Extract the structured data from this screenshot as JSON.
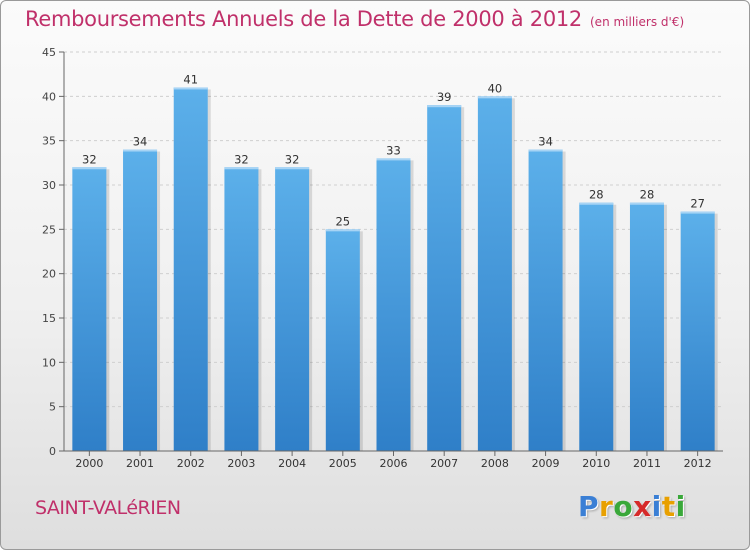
{
  "title": "Remboursements Annuels de la Dette de 2000 à 2012",
  "unit": "(en milliers d'€)",
  "city": "SAINT-VALéRIEN",
  "logo": {
    "letters": [
      "P",
      "r",
      "o",
      "x",
      "i",
      "t",
      "i"
    ],
    "colors": [
      "#3a7fd5",
      "#e8a000",
      "#3aa83a",
      "#d62a2a",
      "#3a7fd5",
      "#e8a000",
      "#3aa83a"
    ]
  },
  "chart_data": {
    "type": "bar",
    "categories": [
      "2000",
      "2001",
      "2002",
      "2003",
      "2004",
      "2005",
      "2006",
      "2007",
      "2008",
      "2009",
      "2010",
      "2011",
      "2012"
    ],
    "values": [
      32,
      34,
      41,
      32,
      32,
      25,
      33,
      39,
      40,
      34,
      28,
      28,
      27
    ],
    "ylim": [
      0,
      45
    ],
    "yticks": [
      0,
      5,
      10,
      15,
      20,
      25,
      30,
      35,
      40,
      45
    ],
    "grid": true,
    "bar_color": "#4a9be0"
  }
}
